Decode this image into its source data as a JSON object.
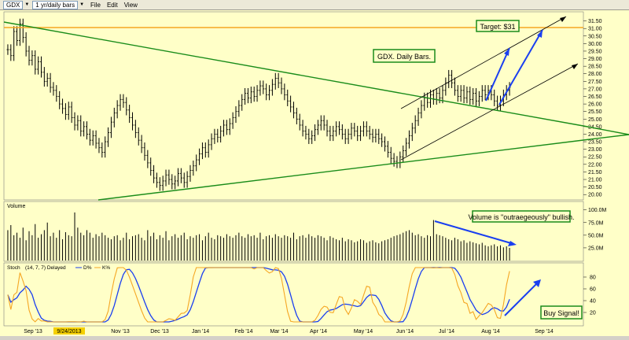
{
  "toolbar": {
    "symbol": "GDX",
    "period": "1 yr/daily bars",
    "menu": [
      "File",
      "Edit",
      "View"
    ]
  },
  "colors": {
    "background": "#ffffc8",
    "price_bars": "#000000",
    "trendline_green": "#1a8c1a",
    "target_line": "#f5a623",
    "channel": "#000000",
    "arrow_blue": "#1a3ff0",
    "stoch_k": "#1a3ff0",
    "stoch_d": "#f5a623",
    "annotation_border": "#1a8c1a"
  },
  "annotations": {
    "target": "Target: $31",
    "title_note": "GDX. Daily Bars.",
    "volume_note": "Volume is \"outraegeously\" bullish.",
    "buy_signal": "Buy Signal!"
  },
  "chart_data": [
    {
      "type": "bar",
      "panel": "price",
      "ylim": [
        19.75,
        32.0
      ],
      "y_ticks": [
        "31.50",
        "31.00",
        "30.50",
        "30.00",
        "29.50",
        "29.00",
        "28.50",
        "28.00",
        "27.50",
        "27.00",
        "26.50",
        "26.00",
        "25.50",
        "25.00",
        "24.50",
        "24.00",
        "23.50",
        "23.00",
        "22.50",
        "22.00",
        "21.50",
        "21.00",
        "20.50",
        "20.00"
      ],
      "closes": [
        29.6,
        29.2,
        30.8,
        30.2,
        31.3,
        30.4,
        29.5,
        28.9,
        29.2,
        28.3,
        28.8,
        28.1,
        27.5,
        27.7,
        27.1,
        26.9,
        26.5,
        26.0,
        25.7,
        25.3,
        25.8,
        25.1,
        24.6,
        24.9,
        24.2,
        24.5,
        24.0,
        23.6,
        23.9,
        23.4,
        23.1,
        22.8,
        23.5,
        24.1,
        24.8,
        25.4,
        25.9,
        26.3,
        26.1,
        25.6,
        25.1,
        24.6,
        24.1,
        23.6,
        23.1,
        22.6,
        22.1,
        21.6,
        21.1,
        20.8,
        20.6,
        20.9,
        21.3,
        21.0,
        20.7,
        20.9,
        21.4,
        21.1,
        20.8,
        21.2,
        21.6,
        21.9,
        22.3,
        22.7,
        23.1,
        22.8,
        23.3,
        23.7,
        24.0,
        23.8,
        24.2,
        24.6,
        24.3,
        24.7,
        25.1,
        25.5,
        25.9,
        26.3,
        26.7,
        26.4,
        26.8,
        26.5,
        26.9,
        27.2,
        27.0,
        26.6,
        26.9,
        27.3,
        27.7,
        27.4,
        27.0,
        26.6,
        26.2,
        25.8,
        25.4,
        25.0,
        24.6,
        24.2,
        24.0,
        23.7,
        23.9,
        24.3,
        24.6,
        24.9,
        24.6,
        24.2,
        23.9,
        24.2,
        24.5,
        24.3,
        24.0,
        23.7,
        24.0,
        24.4,
        24.2,
        23.9,
        24.2,
        24.5,
        24.2,
        24.0,
        23.8,
        24.0,
        23.7,
        23.5,
        23.2,
        22.8,
        22.4,
        22.2,
        22.1,
        22.5,
        22.9,
        23.4,
        23.9,
        24.4,
        24.9,
        25.4,
        25.9,
        26.4,
        26.1,
        26.6,
        26.3,
        26.7,
        26.4,
        26.9,
        27.4,
        27.9,
        27.4,
        26.9,
        26.5,
        26.9,
        26.4,
        26.8,
        26.3,
        26.7,
        26.2,
        26.5,
        26.9,
        26.6,
        26.9,
        26.6,
        26.2,
        25.9,
        26.2,
        26.6,
        26.9,
        27.1
      ],
      "x_labels": [
        "Sep '13",
        "9/24/2013",
        "Nov '13",
        "Dec '13",
        "Jan '14",
        "Feb '14",
        "Mar '14",
        "Apr '14",
        "May '14",
        "Jun '14",
        "Jul '14",
        "Aug '14",
        "Sep '14"
      ]
    },
    {
      "type": "bar",
      "panel": "volume",
      "title": "Volume",
      "y_ticks": [
        "100.0M",
        "75.0M",
        "50.0M",
        "25.0M"
      ],
      "values_m": [
        60,
        70,
        50,
        55,
        45,
        65,
        40,
        58,
        50,
        72,
        45,
        52,
        60,
        75,
        48,
        55,
        45,
        60,
        42,
        56,
        50,
        48,
        95,
        65,
        55,
        50,
        60,
        55,
        45,
        52,
        48,
        55,
        50,
        45,
        42,
        48,
        50,
        40,
        45,
        55,
        42,
        48,
        50,
        52,
        45,
        40,
        60,
        48,
        55,
        42,
        50,
        45,
        58,
        40,
        48,
        52,
        45,
        50,
        55,
        42,
        48,
        45,
        50,
        52,
        40,
        48,
        55,
        45,
        42,
        50,
        48,
        45,
        52,
        48,
        45,
        50,
        55,
        48,
        45,
        52,
        48,
        50,
        45,
        55,
        42,
        48,
        50,
        45,
        52,
        48,
        45,
        50,
        48,
        45,
        55,
        42,
        48,
        50,
        45,
        52,
        48,
        45,
        50,
        48,
        45,
        40,
        48,
        45,
        42,
        40,
        45,
        38,
        42,
        40,
        36,
        38,
        42,
        40,
        35,
        38,
        40,
        36,
        34,
        38,
        40,
        42,
        45,
        48,
        50,
        52,
        55,
        58,
        60,
        55,
        50,
        52,
        48,
        45,
        50,
        48,
        80,
        52,
        50,
        48,
        45,
        42,
        40,
        45,
        42,
        38,
        40,
        35,
        38,
        36,
        34,
        32,
        35,
        30,
        28,
        30,
        32,
        28,
        30,
        26,
        28,
        25
      ]
    },
    {
      "type": "line",
      "panel": "stochastic",
      "title": "Stoch",
      "params": "(14, 7, 7) Delayed",
      "legend": [
        "D%",
        "K%"
      ],
      "y_ticks": [
        "80",
        "60",
        "40",
        "20"
      ],
      "ylim": [
        0,
        100
      ]
    }
  ]
}
